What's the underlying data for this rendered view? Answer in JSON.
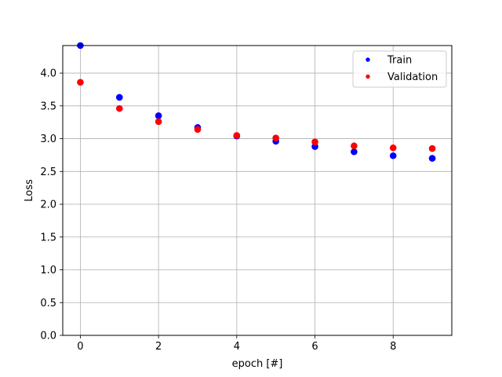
{
  "chart_data": {
    "type": "scatter",
    "title": "",
    "xlabel": "epoch [#]",
    "ylabel": "Loss",
    "xlim": [
      -0.45,
      9.5
    ],
    "ylim": [
      0.0,
      4.42
    ],
    "xticks": [
      0,
      2,
      4,
      6,
      8
    ],
    "xtick_labels": [
      "0",
      "2",
      "4",
      "6",
      "8"
    ],
    "yticks": [
      0.0,
      0.5,
      1.0,
      1.5,
      2.0,
      2.5,
      3.0,
      3.5,
      4.0
    ],
    "ytick_labels": [
      "0.0",
      "0.5",
      "1.0",
      "1.5",
      "2.0",
      "2.5",
      "3.0",
      "3.5",
      "4.0"
    ],
    "grid": true,
    "legend_position": "top-right",
    "x": [
      0,
      1,
      2,
      3,
      4,
      5,
      6,
      7,
      8,
      9
    ],
    "series": [
      {
        "name": "Train",
        "color": "#0000ff",
        "values": [
          4.42,
          3.63,
          3.35,
          3.17,
          3.04,
          2.96,
          2.88,
          2.8,
          2.74,
          2.7
        ]
      },
      {
        "name": "Validation",
        "color": "#ff0000",
        "values": [
          3.86,
          3.46,
          3.26,
          3.14,
          3.05,
          3.01,
          2.95,
          2.89,
          2.86,
          2.85
        ]
      }
    ]
  }
}
